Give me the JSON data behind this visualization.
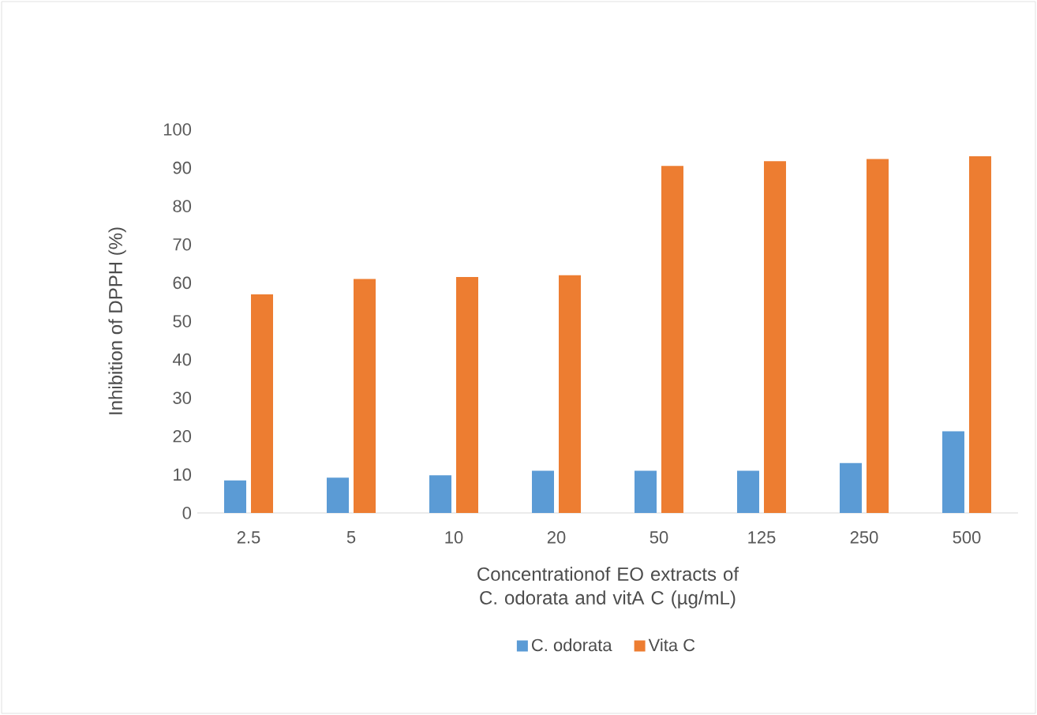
{
  "chart_data": {
    "type": "bar",
    "ylabel": "Inhibition of DPPH (%)",
    "xlabel": "Concentrationof EO extracts of C. odorata and vitA C (µg/mL)",
    "categories": [
      "2.5",
      "5",
      "10",
      "20",
      "50",
      "125",
      "250",
      "500"
    ],
    "series": [
      {
        "name": "C. odorata",
        "color": "#5b9bd5",
        "values": [
          8.5,
          9.2,
          9.8,
          11,
          11,
          11,
          13,
          21.3
        ]
      },
      {
        "name": "Vita C",
        "color": "#ed7d31",
        "values": [
          57,
          61,
          61.5,
          62,
          90.5,
          91.7,
          92.3,
          93
        ]
      }
    ],
    "ylim": [
      0,
      100
    ],
    "yticks": [
      0,
      10,
      20,
      30,
      40,
      50,
      60,
      70,
      80,
      90,
      100
    ],
    "grid": false,
    "legend": "bottom"
  }
}
